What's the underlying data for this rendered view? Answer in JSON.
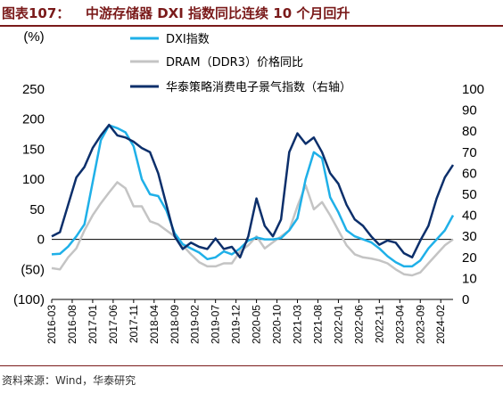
{
  "header": {
    "prefix": "图表107：",
    "title": "中游存储器 DXI 指数同比连续 10 个月回升"
  },
  "footer": {
    "source": "资料来源：Wind，华泰研究"
  },
  "colors": {
    "dxi": "#1fb0e8",
    "dram": "#c4c4c4",
    "sentiment": "#0c2f6b",
    "axis": "#000000"
  },
  "chart_data": {
    "type": "line",
    "left_axis": {
      "unit_label": "(%)",
      "ylim": [
        -100,
        250
      ],
      "ticks": [
        250,
        200,
        150,
        100,
        50,
        0,
        -50,
        -100
      ],
      "tick_labels": [
        "250",
        "200",
        "150",
        "100",
        "50",
        "0",
        "(50)",
        "(100)"
      ]
    },
    "right_axis": {
      "ylim": [
        0,
        100
      ],
      "ticks": [
        100,
        90,
        80,
        70,
        60,
        50,
        40,
        30,
        20,
        10,
        0
      ],
      "tick_labels": [
        "100",
        "90",
        "80",
        "70",
        "60",
        "50",
        "40",
        "30",
        "20",
        "10",
        "0"
      ]
    },
    "x_tick_labels": [
      "2016-03",
      "2016-08",
      "2017-01",
      "2017-06",
      "2017-11",
      "2018-04",
      "2018-09",
      "2019-02",
      "2019-07",
      "2019-12",
      "2020-05",
      "2020-10",
      "2021-03",
      "2021-08",
      "2022-01",
      "2022-06",
      "2022-11",
      "2023-04",
      "2023-09",
      "2024-02"
    ],
    "x_start": "2016-03",
    "x_end": "2024-05",
    "series": [
      {
        "name": "DXI指数",
        "axis": "left",
        "points": [
          [
            "2016-03",
            -25
          ],
          [
            "2016-05",
            -24
          ],
          [
            "2016-07",
            -12
          ],
          [
            "2016-09",
            5
          ],
          [
            "2016-11",
            25
          ],
          [
            "2017-01",
            95
          ],
          [
            "2017-03",
            165
          ],
          [
            "2017-05",
            190
          ],
          [
            "2017-07",
            185
          ],
          [
            "2017-09",
            178
          ],
          [
            "2017-11",
            155
          ],
          [
            "2018-01",
            100
          ],
          [
            "2018-03",
            75
          ],
          [
            "2018-05",
            72
          ],
          [
            "2018-07",
            48
          ],
          [
            "2018-09",
            10
          ],
          [
            "2018-11",
            -8
          ],
          [
            "2019-01",
            -15
          ],
          [
            "2019-03",
            -22
          ],
          [
            "2019-05",
            -33
          ],
          [
            "2019-07",
            -30
          ],
          [
            "2019-09",
            -20
          ],
          [
            "2019-11",
            -25
          ],
          [
            "2020-01",
            -15
          ],
          [
            "2020-03",
            -2
          ],
          [
            "2020-05",
            3
          ],
          [
            "2020-07",
            0
          ],
          [
            "2020-09",
            0
          ],
          [
            "2020-11",
            2
          ],
          [
            "2021-01",
            15
          ],
          [
            "2021-03",
            35
          ],
          [
            "2021-05",
            100
          ],
          [
            "2021-07",
            145
          ],
          [
            "2021-09",
            135
          ],
          [
            "2021-11",
            70
          ],
          [
            "2022-01",
            45
          ],
          [
            "2022-03",
            15
          ],
          [
            "2022-05",
            5
          ],
          [
            "2022-07",
            0
          ],
          [
            "2022-09",
            -5
          ],
          [
            "2022-11",
            -15
          ],
          [
            "2023-01",
            -28
          ],
          [
            "2023-03",
            -38
          ],
          [
            "2023-05",
            -45
          ],
          [
            "2023-07",
            -45
          ],
          [
            "2023-09",
            -35
          ],
          [
            "2023-11",
            -15
          ],
          [
            "2024-01",
            0
          ],
          [
            "2024-03",
            15
          ],
          [
            "2024-05",
            40
          ]
        ]
      },
      {
        "name": "DRAM（DDR3）价格同比",
        "axis": "left",
        "points": [
          [
            "2016-03",
            -48
          ],
          [
            "2016-05",
            -50
          ],
          [
            "2016-07",
            -30
          ],
          [
            "2016-09",
            -15
          ],
          [
            "2016-11",
            15
          ],
          [
            "2017-01",
            40
          ],
          [
            "2017-03",
            60
          ],
          [
            "2017-05",
            78
          ],
          [
            "2017-07",
            95
          ],
          [
            "2017-09",
            85
          ],
          [
            "2017-11",
            55
          ],
          [
            "2018-01",
            55
          ],
          [
            "2018-03",
            30
          ],
          [
            "2018-05",
            25
          ],
          [
            "2018-07",
            15
          ],
          [
            "2018-09",
            5
          ],
          [
            "2018-11",
            -10
          ],
          [
            "2019-01",
            -25
          ],
          [
            "2019-03",
            -38
          ],
          [
            "2019-05",
            -45
          ],
          [
            "2019-07",
            -45
          ],
          [
            "2019-09",
            -40
          ],
          [
            "2019-11",
            -40
          ],
          [
            "2020-01",
            -20
          ],
          [
            "2020-03",
            -10
          ],
          [
            "2020-05",
            5
          ],
          [
            "2020-07",
            -15
          ],
          [
            "2020-09",
            -5
          ],
          [
            "2020-11",
            5
          ],
          [
            "2021-01",
            15
          ],
          [
            "2021-03",
            55
          ],
          [
            "2021-05",
            90
          ],
          [
            "2021-07",
            50
          ],
          [
            "2021-09",
            62
          ],
          [
            "2021-11",
            40
          ],
          [
            "2022-01",
            15
          ],
          [
            "2022-03",
            -10
          ],
          [
            "2022-05",
            -25
          ],
          [
            "2022-07",
            -30
          ],
          [
            "2022-09",
            -32
          ],
          [
            "2022-11",
            -35
          ],
          [
            "2023-01",
            -40
          ],
          [
            "2023-03",
            -50
          ],
          [
            "2023-05",
            -58
          ],
          [
            "2023-07",
            -60
          ],
          [
            "2023-09",
            -55
          ],
          [
            "2023-11",
            -40
          ],
          [
            "2024-01",
            -25
          ],
          [
            "2024-03",
            -10
          ],
          [
            "2024-05",
            0
          ]
        ]
      },
      {
        "name": "华泰策略消费电子景气指数（右轴）",
        "axis": "right",
        "points": [
          [
            "2016-03",
            30
          ],
          [
            "2016-05",
            32
          ],
          [
            "2016-07",
            45
          ],
          [
            "2016-09",
            58
          ],
          [
            "2016-11",
            63
          ],
          [
            "2017-01",
            72
          ],
          [
            "2017-03",
            78
          ],
          [
            "2017-05",
            83
          ],
          [
            "2017-07",
            78
          ],
          [
            "2017-09",
            77
          ],
          [
            "2017-11",
            75
          ],
          [
            "2018-01",
            72
          ],
          [
            "2018-03",
            70
          ],
          [
            "2018-05",
            60
          ],
          [
            "2018-07",
            45
          ],
          [
            "2018-09",
            30
          ],
          [
            "2018-11",
            24
          ],
          [
            "2019-01",
            27
          ],
          [
            "2019-03",
            25
          ],
          [
            "2019-05",
            24
          ],
          [
            "2019-07",
            29
          ],
          [
            "2019-09",
            24
          ],
          [
            "2019-11",
            25
          ],
          [
            "2020-01",
            20
          ],
          [
            "2020-03",
            30
          ],
          [
            "2020-05",
            48
          ],
          [
            "2020-07",
            35
          ],
          [
            "2020-09",
            30
          ],
          [
            "2020-11",
            38
          ],
          [
            "2021-01",
            70
          ],
          [
            "2021-03",
            79
          ],
          [
            "2021-05",
            74
          ],
          [
            "2021-07",
            77
          ],
          [
            "2021-09",
            70
          ],
          [
            "2021-11",
            60
          ],
          [
            "2022-01",
            55
          ],
          [
            "2022-03",
            45
          ],
          [
            "2022-05",
            38
          ],
          [
            "2022-07",
            35
          ],
          [
            "2022-09",
            30
          ],
          [
            "2022-11",
            26
          ],
          [
            "2023-01",
            28
          ],
          [
            "2023-03",
            27
          ],
          [
            "2023-05",
            22
          ],
          [
            "2023-07",
            20
          ],
          [
            "2023-09",
            28
          ],
          [
            "2023-11",
            35
          ],
          [
            "2024-01",
            48
          ],
          [
            "2024-03",
            58
          ],
          [
            "2024-05",
            64
          ]
        ]
      }
    ],
    "grid": false,
    "legend_position": "top-center"
  }
}
